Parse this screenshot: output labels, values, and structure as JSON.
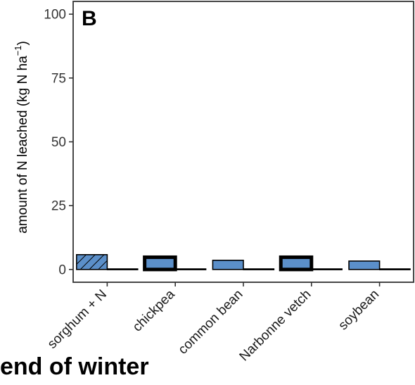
{
  "panel_label": "B",
  "caption": "end of winter",
  "chart_data": {
    "type": "bar",
    "title": "",
    "ylabel": "amount of N leached (kg N ha",
    "ylabel_superscript": "−1",
    "ylabel_close": ")",
    "xlabel": "",
    "ylim": [
      0,
      100
    ],
    "yticks": [
      0,
      25,
      50,
      75,
      100
    ],
    "grid": false,
    "categories": [
      "sorghum + N",
      "chickpea",
      "common bean",
      "Narbonne vetch",
      "soybean"
    ],
    "series": [
      {
        "values": [
          5.8,
          4.8,
          3.6,
          4.8,
          3.3
        ],
        "color": "#5b8fc9",
        "styles": [
          "hatched",
          "thick-border",
          "normal",
          "thick-border",
          "normal"
        ]
      },
      {
        "values": [
          0.1,
          0.1,
          0.1,
          0.1,
          0.1
        ],
        "color": "#000000"
      }
    ]
  }
}
